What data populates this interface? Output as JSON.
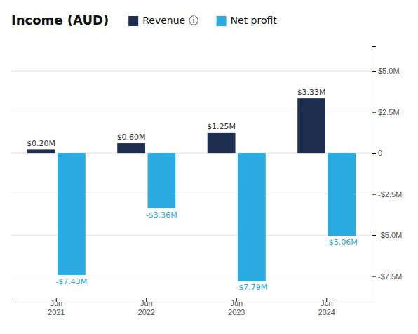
{
  "chart_data": {
    "type": "bar",
    "title": "Income (AUD)",
    "categories": [
      "Jun\n2021",
      "Jun\n2022",
      "Jun\n2023",
      "Jun\n2024"
    ],
    "series": [
      {
        "name": "Revenue ⓘ",
        "color": "#1d2e50",
        "values": [
          0.2,
          0.6,
          1.25,
          3.33
        ],
        "value_labels": [
          "$0.20M",
          "$0.60M",
          "$1.25M",
          "$3.33M"
        ]
      },
      {
        "name": "Net profit",
        "color": "#29abe2",
        "values": [
          -7.43,
          -3.36,
          -7.79,
          -5.06
        ],
        "value_labels": [
          "-$7.43M",
          "-$3.36M",
          "-$7.79M",
          "-$5.06M"
        ]
      }
    ],
    "ylim": [
      -8.8,
      6.5
    ],
    "yticks": [
      {
        "value": 5.0,
        "label": "$5.0M"
      },
      {
        "value": 2.5,
        "label": "$2.5M"
      },
      0,
      {
        "value": -2.5,
        "label": "-$2.5M"
      },
      {
        "value": -5.0,
        "label": "-$5.0M"
      },
      {
        "value": -7.5,
        "label": "-$7.5M"
      }
    ],
    "grid": true,
    "legend": "top",
    "data_labels": true
  }
}
